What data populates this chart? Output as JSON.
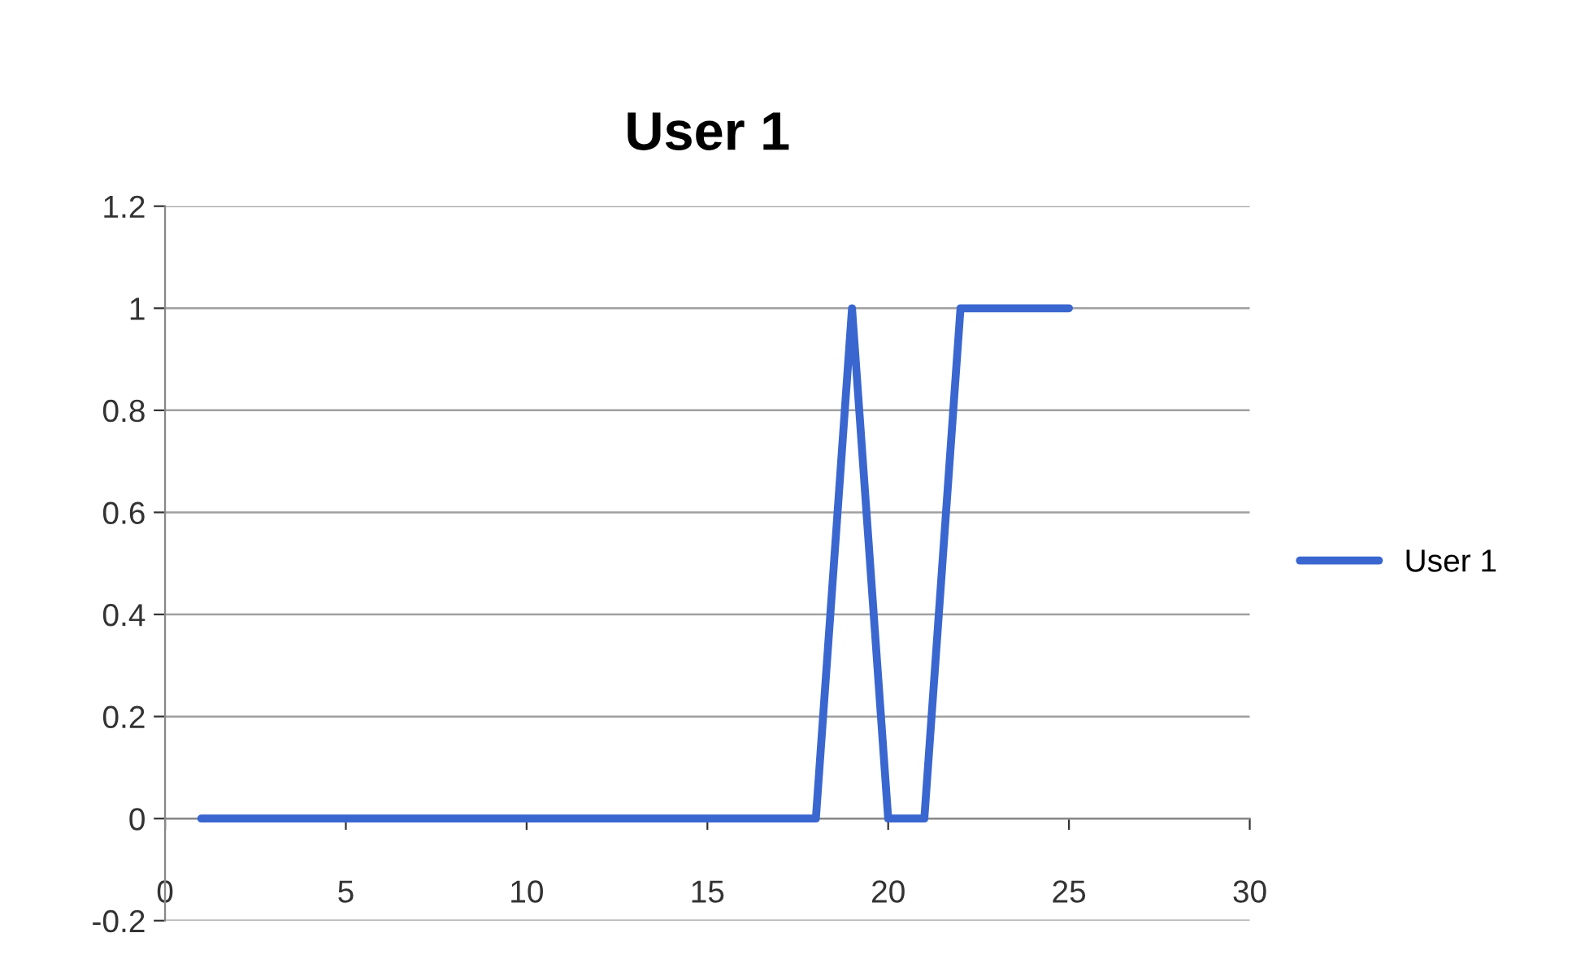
{
  "chart_data": {
    "type": "line",
    "title": "User 1",
    "x": [
      1,
      2,
      3,
      4,
      5,
      6,
      7,
      8,
      9,
      10,
      11,
      12,
      13,
      14,
      15,
      16,
      17,
      18,
      19,
      20,
      21,
      22,
      23,
      24,
      25
    ],
    "series": [
      {
        "name": "User 1",
        "color": "#3a66d0",
        "values": [
          0,
          0,
          0,
          0,
          0,
          0,
          0,
          0,
          0,
          0,
          0,
          0,
          0,
          0,
          0,
          0,
          0,
          0,
          1,
          0,
          0,
          1,
          1,
          1,
          1
        ]
      }
    ],
    "xlim": [
      0,
      30
    ],
    "xticks": [
      0,
      5,
      10,
      15,
      20,
      25,
      30
    ],
    "ylim": [
      -0.2,
      1.2
    ],
    "yticks": [
      -0.2,
      0,
      0.2,
      0.4,
      0.6,
      0.8,
      1,
      1.2
    ],
    "grid": "y",
    "legend": "right",
    "marker": "none",
    "line_style": "solid"
  }
}
